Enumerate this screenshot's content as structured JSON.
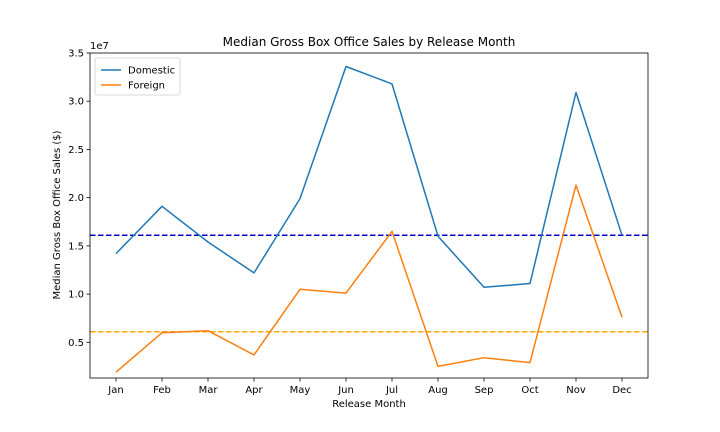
{
  "chart_data": {
    "type": "line",
    "title": "Median Gross Box Office Sales by Release Month",
    "xlabel": "Release Month",
    "ylabel": "Median Gross Box Office Sales ($)",
    "offset_label": "1e7",
    "categories": [
      "Jan",
      "Feb",
      "Mar",
      "Apr",
      "May",
      "Jun",
      "Jul",
      "Aug",
      "Sep",
      "Oct",
      "Nov",
      "Dec"
    ],
    "ylim": [
      1.3,
      35.0
    ],
    "y_scale_factor": 10000000,
    "y_ticks": [
      0.5,
      1.0,
      1.5,
      2.0,
      2.5,
      3.0,
      3.5
    ],
    "y_tick_labels": [
      "0.5",
      "1.0",
      "1.5",
      "2.0",
      "2.5",
      "3.0",
      "3.5"
    ],
    "series": [
      {
        "name": "Domestic",
        "color": "#1f77b4",
        "values": [
          14.2,
          19.1,
          15.4,
          12.2,
          19.9,
          33.6,
          31.8,
          16.0,
          10.7,
          11.1,
          30.9,
          16.1
        ]
      },
      {
        "name": "Foreign",
        "color": "#ff7f0e",
        "values": [
          1.9,
          6.0,
          6.2,
          3.7,
          10.5,
          10.1,
          16.5,
          2.5,
          3.4,
          2.9,
          21.3,
          7.6
        ]
      }
    ],
    "reference_lines": [
      {
        "value": 16.1,
        "color": "#0000cc",
        "style": "dashed"
      },
      {
        "value": 6.1,
        "color": "#ffa500",
        "style": "dashed"
      }
    ],
    "legend_position": "top-left",
    "grid": false
  }
}
